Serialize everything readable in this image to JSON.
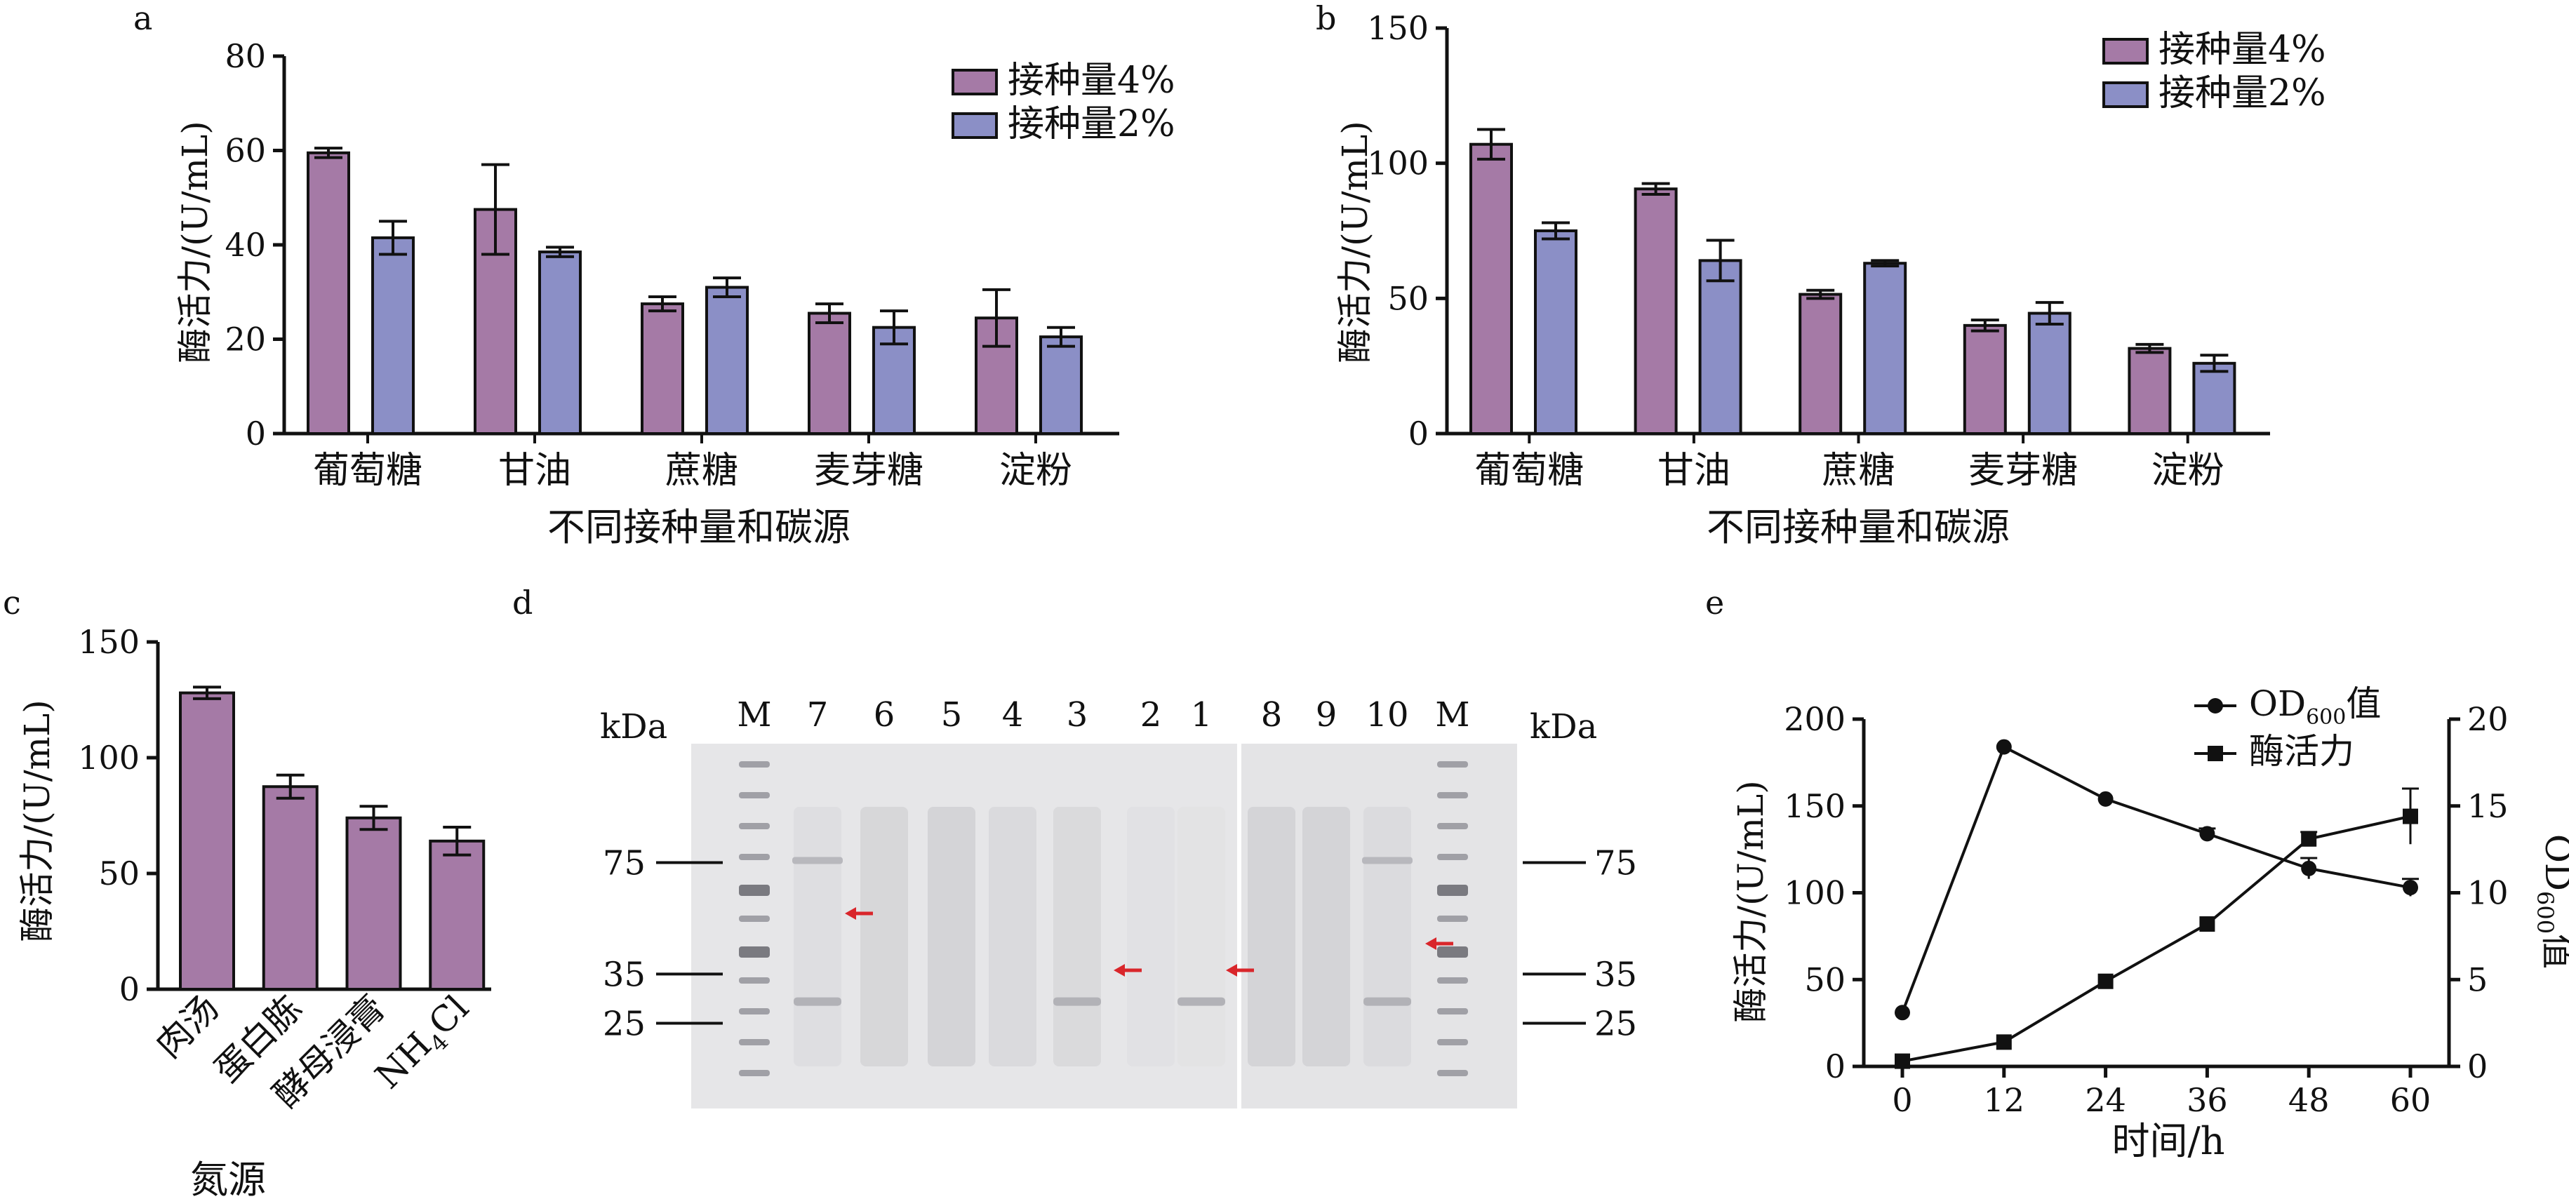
{
  "colors": {
    "series_a": "#a57aa6",
    "series_b": "#8b8fc6",
    "axis": "#111111",
    "gel_bg": "#e9e9eb",
    "marker_arrow": "#d9262b"
  },
  "chart_data": [
    {
      "id": "a",
      "type": "bar",
      "panel_label": "a",
      "categories": [
        "葡萄糖",
        "甘油",
        "蔗糖",
        "麦芽糖",
        "淀粉"
      ],
      "series": [
        {
          "name": "接种量4%",
          "values": [
            59.5,
            47.5,
            27.5,
            25.5,
            24.5
          ],
          "errors": [
            1.0,
            9.5,
            1.5,
            2.0,
            6.0
          ]
        },
        {
          "name": "接种量2%",
          "values": [
            41.5,
            38.5,
            31.0,
            22.5,
            20.5
          ],
          "errors": [
            3.5,
            1.0,
            2.0,
            3.5,
            2.0
          ]
        }
      ],
      "xlabel": "不同接种量和碳源",
      "ylabel": "酶活力/(U/mL)",
      "ylim": [
        0,
        80
      ],
      "yticks": [
        "0",
        "20",
        "40",
        "60",
        "80"
      ],
      "legend": "top-right",
      "grid": false
    },
    {
      "id": "b",
      "type": "bar",
      "panel_label": "b",
      "categories": [
        "葡萄糖",
        "甘油",
        "蔗糖",
        "麦芽糖",
        "淀粉"
      ],
      "series": [
        {
          "name": "接种量4%",
          "values": [
            107,
            90.5,
            51.5,
            40,
            31.5
          ],
          "errors": [
            5.5,
            2.0,
            1.5,
            2.0,
            1.5
          ]
        },
        {
          "name": "接种量2%",
          "values": [
            75,
            64,
            63,
            44.5,
            26
          ],
          "errors": [
            3.0,
            7.5,
            1.0,
            4.0,
            3.0
          ]
        }
      ],
      "xlabel": "不同接种量和碳源",
      "ylabel": "酶活力/(U/mL)",
      "ylim": [
        0,
        150
      ],
      "yticks": [
        "0",
        "50",
        "100",
        "150"
      ],
      "legend": "top-right",
      "grid": false
    },
    {
      "id": "c",
      "type": "bar",
      "panel_label": "c",
      "categories": [
        "肉汤",
        "蛋白胨",
        "酵母浸膏",
        "NH4Cl"
      ],
      "category_display": [
        {
          "main": "肉汤"
        },
        {
          "main": "蛋白胨"
        },
        {
          "main": "酵母浸膏"
        },
        {
          "main": "NH",
          "sub": "4",
          "tail": "Cl"
        }
      ],
      "series": [
        {
          "values": [
            128,
            87.5,
            74,
            64
          ],
          "errors": [
            2.5,
            5.0,
            5.0,
            6.0
          ]
        }
      ],
      "xlabel": "氮源",
      "ylabel": "酶活力/(U/mL)",
      "ylim": [
        0,
        150
      ],
      "yticks": [
        "0",
        "50",
        "100",
        "150"
      ],
      "grid": false
    },
    {
      "id": "e",
      "type": "line",
      "panel_label": "e",
      "x": [
        0,
        12,
        24,
        36,
        48,
        60
      ],
      "xticks": [
        "0",
        "12",
        "24",
        "36",
        "48",
        "60"
      ],
      "series": [
        {
          "name": "OD600值",
          "name_display": {
            "main": "OD",
            "sub": "600",
            "tail": "值"
          },
          "axis": "right",
          "marker": "circle",
          "values": [
            3.1,
            18.4,
            15.4,
            13.4,
            11.4,
            10.3
          ],
          "errors": [
            0,
            0,
            0,
            0.3,
            0.6,
            0.5
          ]
        },
        {
          "name": "酶活力",
          "axis": "left",
          "marker": "square",
          "values": [
            3,
            14,
            49,
            82,
            131,
            144
          ],
          "errors": [
            0,
            0,
            0,
            0,
            4,
            16
          ]
        }
      ],
      "xlabel": "时间/h",
      "ylabel_left": "酶活力/(U/mL)",
      "ylabel_right": "OD600值",
      "ylabel_right_display": {
        "main": "OD",
        "sub": "600",
        "tail": "值"
      },
      "ylim_left": [
        0,
        200
      ],
      "yticks_left": [
        "0",
        "50",
        "100",
        "150",
        "200"
      ],
      "ylim_right": [
        0,
        20
      ],
      "yticks_right": [
        "0",
        "5",
        "10",
        "15",
        "20"
      ],
      "legend": "top-right",
      "grid": false
    }
  ],
  "gel": {
    "panel_label": "d",
    "unit_label": "kDa",
    "lane_labels": [
      "M",
      "7",
      "6",
      "5",
      "4",
      "3",
      "2",
      "1",
      "8",
      "9",
      "10",
      "M"
    ],
    "marker_sizes": [
      "75",
      "35",
      "25"
    ],
    "marker_kda": [
      75,
      35,
      25
    ],
    "arrow_lanes": [
      "7",
      "3",
      "1",
      "10"
    ]
  }
}
